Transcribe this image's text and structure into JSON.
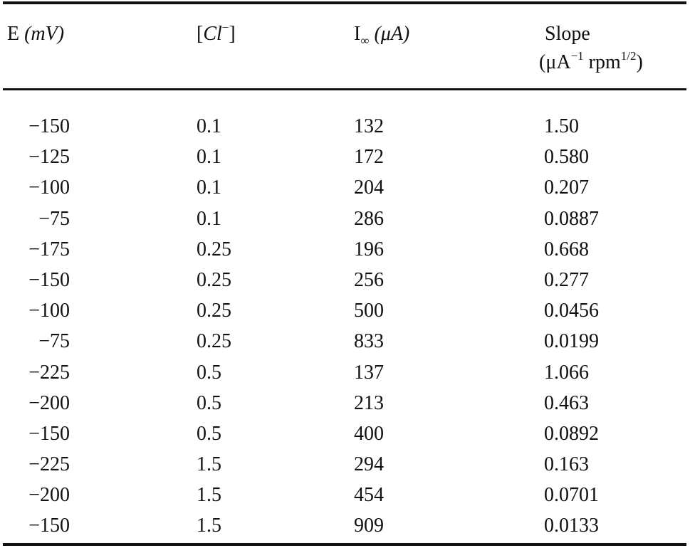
{
  "table": {
    "headers": {
      "e_main": "E",
      "e_unit": "(mV)",
      "cl_open": "[",
      "cl_sym": "Cl",
      "cl_sup": "−",
      "cl_close": "]",
      "i_main": "I",
      "i_sub": "∞",
      "i_unit": "(μA)",
      "slope_title": "Slope",
      "slope_unit_a": "(μA",
      "slope_unit_a_sup": "−1",
      "slope_unit_b": "rpm",
      "slope_unit_b_sup": "1/2",
      "slope_unit_close": ")"
    },
    "rows": [
      {
        "e": "−150",
        "cl": "0.1",
        "i": "132",
        "slope": "1.50"
      },
      {
        "e": "−125",
        "cl": "0.1",
        "i": "172",
        "slope": "0.580"
      },
      {
        "e": "−100",
        "cl": "0.1",
        "i": "204",
        "slope": "0.207"
      },
      {
        "e": "−75",
        "cl": "0.1",
        "i": "286",
        "slope": "0.0887"
      },
      {
        "e": "−175",
        "cl": "0.25",
        "i": "196",
        "slope": "0.668"
      },
      {
        "e": "−150",
        "cl": "0.25",
        "i": "256",
        "slope": "0.277"
      },
      {
        "e": "−100",
        "cl": "0.25",
        "i": "500",
        "slope": "0.0456"
      },
      {
        "e": "−75",
        "cl": "0.25",
        "i": "833",
        "slope": "0.0199"
      },
      {
        "e": "−225",
        "cl": "0.5",
        "i": "137",
        "slope": "1.066"
      },
      {
        "e": "−200",
        "cl": "0.5",
        "i": "213",
        "slope": "0.463"
      },
      {
        "e": "−150",
        "cl": "0.5",
        "i": "400",
        "slope": "0.0892"
      },
      {
        "e": "−225",
        "cl": "1.5",
        "i": "294",
        "slope": "0.163"
      },
      {
        "e": "−200",
        "cl": "1.5",
        "i": "454",
        "slope": "0.0701"
      },
      {
        "e": "−150",
        "cl": "1.5",
        "i": "909",
        "slope": "0.0133"
      }
    ]
  }
}
